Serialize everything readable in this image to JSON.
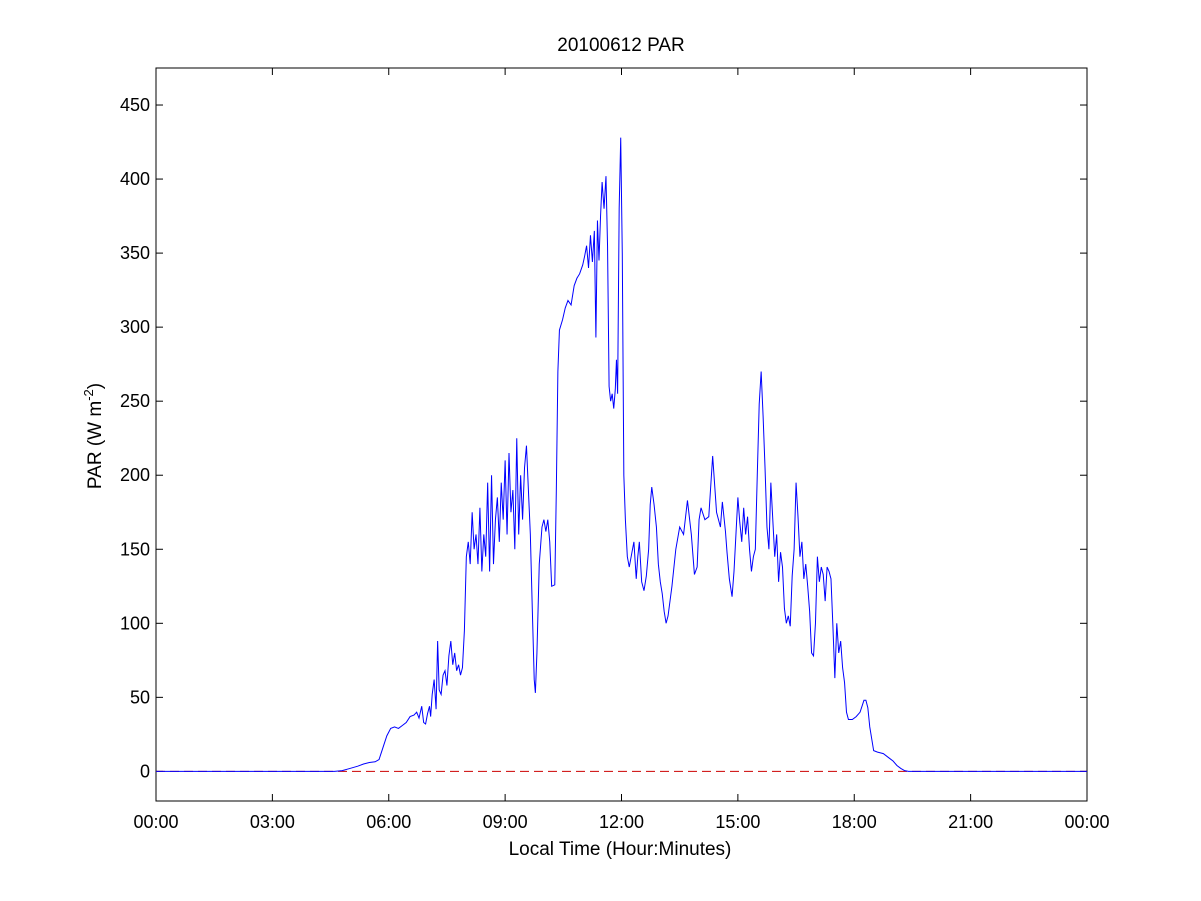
{
  "chart_data": {
    "type": "line",
    "title": "20100612 PAR",
    "xlabel": "Local Time (Hour:Minutes)",
    "ylabel": {
      "prefix": "PAR (W m",
      "superscript": "-2",
      "suffix": ")"
    },
    "xlim": [
      0,
      24
    ],
    "ylim": [
      -20,
      475
    ],
    "x_unit": "hours",
    "x_ticks": [
      {
        "value": 0,
        "label": "00:00"
      },
      {
        "value": 3,
        "label": "03:00"
      },
      {
        "value": 6,
        "label": "06:00"
      },
      {
        "value": 9,
        "label": "09:00"
      },
      {
        "value": 12,
        "label": "12:00"
      },
      {
        "value": 15,
        "label": "15:00"
      },
      {
        "value": 18,
        "label": "18:00"
      },
      {
        "value": 21,
        "label": "21:00"
      },
      {
        "value": 24,
        "label": "00:00"
      }
    ],
    "y_ticks": [
      {
        "value": 0,
        "label": "0"
      },
      {
        "value": 50,
        "label": "50"
      },
      {
        "value": 100,
        "label": "100"
      },
      {
        "value": 150,
        "label": "150"
      },
      {
        "value": 200,
        "label": "200"
      },
      {
        "value": 250,
        "label": "250"
      },
      {
        "value": 300,
        "label": "300"
      },
      {
        "value": 350,
        "label": "350"
      },
      {
        "value": 400,
        "label": "400"
      },
      {
        "value": 450,
        "label": "450"
      }
    ],
    "grid": false,
    "legend": "none",
    "reference_line": {
      "y": 0,
      "style": "dashed",
      "color": "#cc0000"
    },
    "series": [
      {
        "color": "#0000ff",
        "points": [
          [
            0,
            0
          ],
          [
            4.6,
            0
          ],
          [
            4.8,
            0.5
          ],
          [
            5.0,
            2
          ],
          [
            5.2,
            3.5
          ],
          [
            5.35,
            5
          ],
          [
            5.5,
            6
          ],
          [
            5.65,
            6.5
          ],
          [
            5.75,
            8
          ],
          [
            5.85,
            16
          ],
          [
            5.95,
            24
          ],
          [
            6.05,
            29
          ],
          [
            6.15,
            30
          ],
          [
            6.25,
            29
          ],
          [
            6.35,
            31
          ],
          [
            6.45,
            33
          ],
          [
            6.55,
            37
          ],
          [
            6.65,
            38
          ],
          [
            6.72,
            40
          ],
          [
            6.78,
            36
          ],
          [
            6.85,
            44
          ],
          [
            6.9,
            33
          ],
          [
            6.95,
            32
          ],
          [
            7.0,
            39
          ],
          [
            7.05,
            44
          ],
          [
            7.08,
            37
          ],
          [
            7.12,
            52
          ],
          [
            7.17,
            62
          ],
          [
            7.22,
            42
          ],
          [
            7.26,
            88
          ],
          [
            7.3,
            55
          ],
          [
            7.35,
            52
          ],
          [
            7.4,
            65
          ],
          [
            7.45,
            68
          ],
          [
            7.5,
            58
          ],
          [
            7.55,
            78
          ],
          [
            7.6,
            88
          ],
          [
            7.65,
            72
          ],
          [
            7.7,
            80
          ],
          [
            7.75,
            68
          ],
          [
            7.8,
            72
          ],
          [
            7.85,
            65
          ],
          [
            7.9,
            70
          ],
          [
            7.95,
            95
          ],
          [
            8.0,
            145
          ],
          [
            8.05,
            155
          ],
          [
            8.1,
            140
          ],
          [
            8.15,
            175
          ],
          [
            8.2,
            150
          ],
          [
            8.25,
            160
          ],
          [
            8.3,
            140
          ],
          [
            8.35,
            178
          ],
          [
            8.4,
            135
          ],
          [
            8.45,
            160
          ],
          [
            8.5,
            145
          ],
          [
            8.55,
            195
          ],
          [
            8.6,
            135
          ],
          [
            8.65,
            200
          ],
          [
            8.7,
            140
          ],
          [
            8.75,
            170
          ],
          [
            8.8,
            185
          ],
          [
            8.85,
            155
          ],
          [
            8.9,
            195
          ],
          [
            8.95,
            170
          ],
          [
            9.0,
            210
          ],
          [
            9.05,
            160
          ],
          [
            9.1,
            215
          ],
          [
            9.15,
            175
          ],
          [
            9.2,
            190
          ],
          [
            9.25,
            150
          ],
          [
            9.3,
            225
          ],
          [
            9.35,
            160
          ],
          [
            9.4,
            200
          ],
          [
            9.45,
            170
          ],
          [
            9.5,
            205
          ],
          [
            9.55,
            220
          ],
          [
            9.6,
            190
          ],
          [
            9.65,
            160
          ],
          [
            9.7,
            110
          ],
          [
            9.75,
            62
          ],
          [
            9.78,
            53
          ],
          [
            9.82,
            80
          ],
          [
            9.88,
            140
          ],
          [
            9.95,
            165
          ],
          [
            10.0,
            170
          ],
          [
            10.05,
            162
          ],
          [
            10.1,
            170
          ],
          [
            10.15,
            155
          ],
          [
            10.2,
            125
          ],
          [
            10.28,
            126
          ],
          [
            10.32,
            190
          ],
          [
            10.36,
            270
          ],
          [
            10.4,
            298
          ],
          [
            10.48,
            305
          ],
          [
            10.55,
            313
          ],
          [
            10.62,
            318
          ],
          [
            10.7,
            315
          ],
          [
            10.78,
            328
          ],
          [
            10.85,
            333
          ],
          [
            10.92,
            336
          ],
          [
            11.0,
            342
          ],
          [
            11.05,
            348
          ],
          [
            11.1,
            355
          ],
          [
            11.15,
            340
          ],
          [
            11.2,
            362
          ],
          [
            11.25,
            344
          ],
          [
            11.3,
            365
          ],
          [
            11.34,
            293
          ],
          [
            11.38,
            372
          ],
          [
            11.42,
            345
          ],
          [
            11.46,
            375
          ],
          [
            11.5,
            398
          ],
          [
            11.55,
            380
          ],
          [
            11.6,
            402
          ],
          [
            11.64,
            355
          ],
          [
            11.68,
            260
          ],
          [
            11.72,
            250
          ],
          [
            11.76,
            255
          ],
          [
            11.8,
            245
          ],
          [
            11.84,
            258
          ],
          [
            11.87,
            278
          ],
          [
            11.9,
            255
          ],
          [
            11.94,
            380
          ],
          [
            11.98,
            428
          ],
          [
            12.02,
            350
          ],
          [
            12.06,
            200
          ],
          [
            12.1,
            170
          ],
          [
            12.15,
            145
          ],
          [
            12.2,
            138
          ],
          [
            12.27,
            148
          ],
          [
            12.32,
            155
          ],
          [
            12.38,
            130
          ],
          [
            12.42,
            145
          ],
          [
            12.46,
            155
          ],
          [
            12.52,
            128
          ],
          [
            12.58,
            122
          ],
          [
            12.64,
            132
          ],
          [
            12.7,
            150
          ],
          [
            12.74,
            180
          ],
          [
            12.78,
            192
          ],
          [
            12.84,
            180
          ],
          [
            12.9,
            165
          ],
          [
            12.95,
            140
          ],
          [
            13.0,
            128
          ],
          [
            13.05,
            120
          ],
          [
            13.1,
            108
          ],
          [
            13.15,
            100
          ],
          [
            13.2,
            105
          ],
          [
            13.3,
            125
          ],
          [
            13.4,
            150
          ],
          [
            13.5,
            165
          ],
          [
            13.6,
            160
          ],
          [
            13.7,
            183
          ],
          [
            13.8,
            160
          ],
          [
            13.88,
            133
          ],
          [
            13.95,
            138
          ],
          [
            14.0,
            170
          ],
          [
            14.05,
            178
          ],
          [
            14.15,
            170
          ],
          [
            14.25,
            172
          ],
          [
            14.35,
            213
          ],
          [
            14.45,
            175
          ],
          [
            14.55,
            165
          ],
          [
            14.6,
            182
          ],
          [
            14.68,
            162
          ],
          [
            14.72,
            148
          ],
          [
            14.78,
            130
          ],
          [
            14.85,
            118
          ],
          [
            14.9,
            135
          ],
          [
            14.95,
            160
          ],
          [
            15.0,
            185
          ],
          [
            15.05,
            168
          ],
          [
            15.1,
            155
          ],
          [
            15.15,
            178
          ],
          [
            15.2,
            160
          ],
          [
            15.25,
            172
          ],
          [
            15.3,
            150
          ],
          [
            15.35,
            135
          ],
          [
            15.4,
            145
          ],
          [
            15.45,
            150
          ],
          [
            15.5,
            200
          ],
          [
            15.55,
            248
          ],
          [
            15.6,
            270
          ],
          [
            15.65,
            240
          ],
          [
            15.7,
            205
          ],
          [
            15.75,
            165
          ],
          [
            15.8,
            150
          ],
          [
            15.85,
            195
          ],
          [
            15.9,
            170
          ],
          [
            15.95,
            145
          ],
          [
            16.0,
            160
          ],
          [
            16.05,
            128
          ],
          [
            16.1,
            148
          ],
          [
            16.15,
            138
          ],
          [
            16.2,
            110
          ],
          [
            16.25,
            100
          ],
          [
            16.3,
            105
          ],
          [
            16.35,
            98
          ],
          [
            16.4,
            132
          ],
          [
            16.45,
            150
          ],
          [
            16.5,
            195
          ],
          [
            16.55,
            172
          ],
          [
            16.6,
            145
          ],
          [
            16.65,
            155
          ],
          [
            16.7,
            130
          ],
          [
            16.75,
            140
          ],
          [
            16.8,
            125
          ],
          [
            16.85,
            108
          ],
          [
            16.9,
            80
          ],
          [
            16.95,
            78
          ],
          [
            17.0,
            100
          ],
          [
            17.05,
            145
          ],
          [
            17.1,
            128
          ],
          [
            17.15,
            138
          ],
          [
            17.2,
            133
          ],
          [
            17.25,
            115
          ],
          [
            17.3,
            138
          ],
          [
            17.35,
            135
          ],
          [
            17.4,
            130
          ],
          [
            17.45,
            98
          ],
          [
            17.5,
            63
          ],
          [
            17.55,
            100
          ],
          [
            17.6,
            80
          ],
          [
            17.65,
            88
          ],
          [
            17.7,
            70
          ],
          [
            17.75,
            60
          ],
          [
            17.8,
            40
          ],
          [
            17.85,
            35
          ],
          [
            17.95,
            35
          ],
          [
            18.05,
            37
          ],
          [
            18.15,
            40
          ],
          [
            18.25,
            48
          ],
          [
            18.3,
            48
          ],
          [
            18.35,
            43
          ],
          [
            18.4,
            30
          ],
          [
            18.45,
            22
          ],
          [
            18.5,
            14
          ],
          [
            18.6,
            13
          ],
          [
            18.75,
            12
          ],
          [
            18.9,
            9
          ],
          [
            19.0,
            7
          ],
          [
            19.1,
            4
          ],
          [
            19.2,
            2
          ],
          [
            19.3,
            0.5
          ],
          [
            19.4,
            0
          ],
          [
            24,
            0
          ]
        ]
      }
    ]
  }
}
